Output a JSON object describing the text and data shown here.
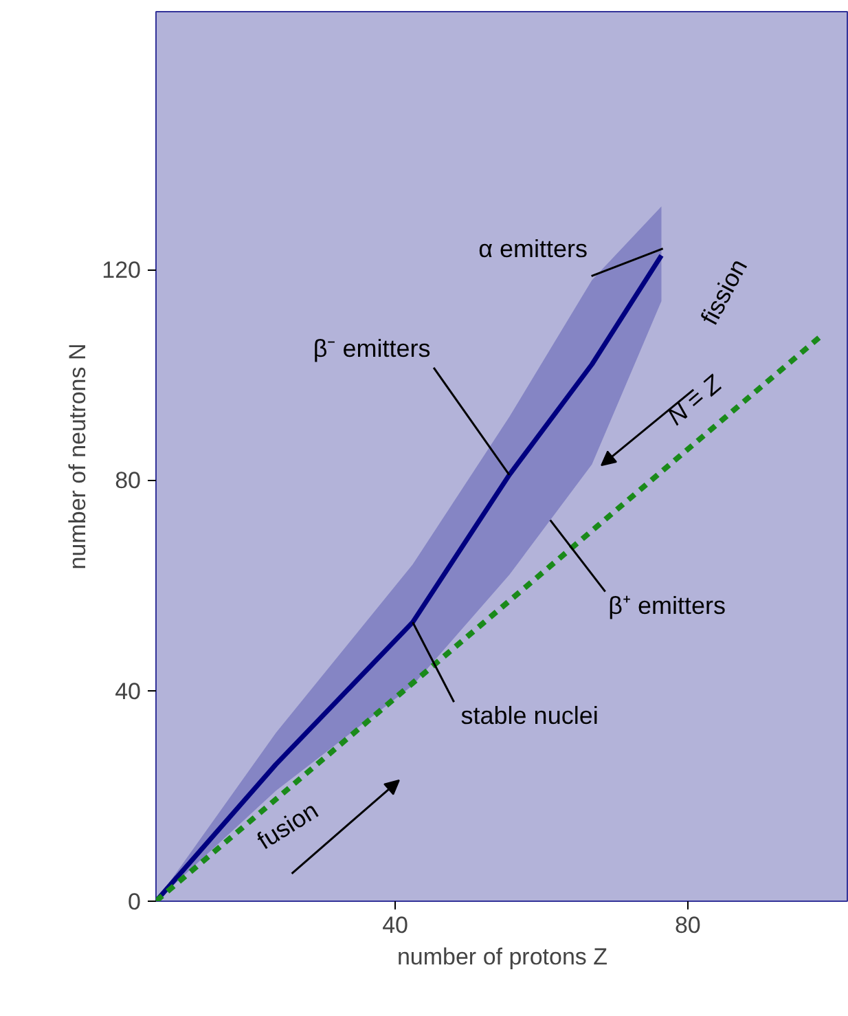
{
  "chart_data": {
    "type": "line",
    "xlabel": "number of protons Z",
    "ylabel": "number of neutrons N",
    "xlim": [
      7.3,
      102
    ],
    "ylim": [
      0,
      169
    ],
    "xticks": [
      40,
      80
    ],
    "yticks": [
      0,
      40,
      80,
      120
    ],
    "grid": false,
    "series": [
      {
        "color": "#000080",
        "x": [
          7.3,
          23.7,
          42.4,
          55.6,
          66.9,
          76.4
        ],
        "values": [
          0,
          26,
          53,
          81,
          102,
          122.7
        ],
        "lower": [
          0,
          21,
          41,
          62,
          83,
          114
        ],
        "upper": [
          0,
          32,
          64,
          92,
          118,
          132
        ]
      },
      {
        "name": "N = Z",
        "color": "#1a8a1a",
        "line_style": "dashed",
        "x": [
          7.3,
          98.4
        ],
        "values": [
          0,
          107.6
        ]
      }
    ],
    "annotations": [
      {
        "text": "α  emitters",
        "x": 76.6,
        "y": 124
      },
      {
        "text": "β⁻ emitters",
        "x": 55.6,
        "y": 81
      },
      {
        "text": "β⁺ emitters",
        "x": 61.2,
        "y": 72.4
      },
      {
        "text": "stable nuclei",
        "x": 42.4,
        "y": 53
      },
      "fission",
      "fusion"
    ]
  }
}
